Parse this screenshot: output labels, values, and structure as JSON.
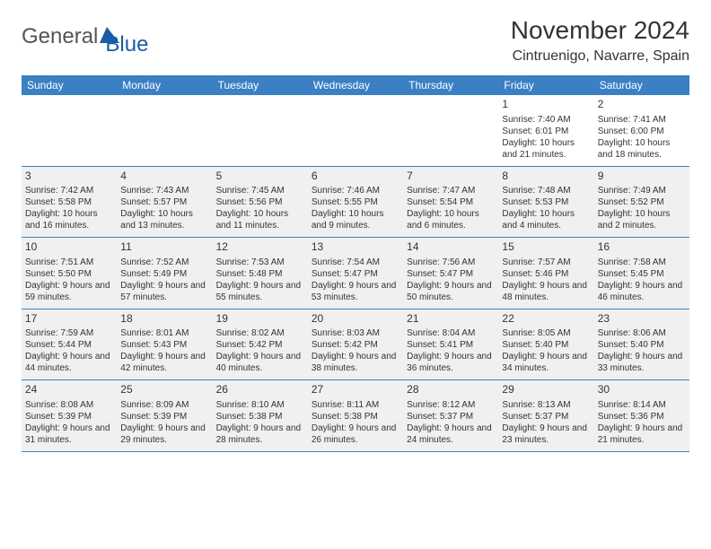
{
  "logo": {
    "first": "General",
    "second": "Blue"
  },
  "header": {
    "month_title": "November 2024",
    "location": "Cintruenigo, Navarre, Spain"
  },
  "colors": {
    "header_bg": "#3b7fc4",
    "header_text": "#ffffff",
    "border": "#3b7fc4",
    "shaded_bg": "#f0f0f0",
    "logo_first": "#555555",
    "logo_second": "#1a5ca8"
  },
  "day_names": [
    "Sunday",
    "Monday",
    "Tuesday",
    "Wednesday",
    "Thursday",
    "Friday",
    "Saturday"
  ],
  "weeks": [
    [
      {
        "empty": true
      },
      {
        "empty": true
      },
      {
        "empty": true
      },
      {
        "empty": true
      },
      {
        "empty": true
      },
      {
        "num": "1",
        "sunrise": "Sunrise: 7:40 AM",
        "sunset": "Sunset: 6:01 PM",
        "daylight": "Daylight: 10 hours and 21 minutes."
      },
      {
        "num": "2",
        "sunrise": "Sunrise: 7:41 AM",
        "sunset": "Sunset: 6:00 PM",
        "daylight": "Daylight: 10 hours and 18 minutes."
      }
    ],
    [
      {
        "num": "3",
        "shaded": true,
        "sunrise": "Sunrise: 7:42 AM",
        "sunset": "Sunset: 5:58 PM",
        "daylight": "Daylight: 10 hours and 16 minutes."
      },
      {
        "num": "4",
        "shaded": true,
        "sunrise": "Sunrise: 7:43 AM",
        "sunset": "Sunset: 5:57 PM",
        "daylight": "Daylight: 10 hours and 13 minutes."
      },
      {
        "num": "5",
        "shaded": true,
        "sunrise": "Sunrise: 7:45 AM",
        "sunset": "Sunset: 5:56 PM",
        "daylight": "Daylight: 10 hours and 11 minutes."
      },
      {
        "num": "6",
        "shaded": true,
        "sunrise": "Sunrise: 7:46 AM",
        "sunset": "Sunset: 5:55 PM",
        "daylight": "Daylight: 10 hours and 9 minutes."
      },
      {
        "num": "7",
        "shaded": true,
        "sunrise": "Sunrise: 7:47 AM",
        "sunset": "Sunset: 5:54 PM",
        "daylight": "Daylight: 10 hours and 6 minutes."
      },
      {
        "num": "8",
        "shaded": true,
        "sunrise": "Sunrise: 7:48 AM",
        "sunset": "Sunset: 5:53 PM",
        "daylight": "Daylight: 10 hours and 4 minutes."
      },
      {
        "num": "9",
        "shaded": true,
        "sunrise": "Sunrise: 7:49 AM",
        "sunset": "Sunset: 5:52 PM",
        "daylight": "Daylight: 10 hours and 2 minutes."
      }
    ],
    [
      {
        "num": "10",
        "shaded": true,
        "sunrise": "Sunrise: 7:51 AM",
        "sunset": "Sunset: 5:50 PM",
        "daylight": "Daylight: 9 hours and 59 minutes."
      },
      {
        "num": "11",
        "shaded": true,
        "sunrise": "Sunrise: 7:52 AM",
        "sunset": "Sunset: 5:49 PM",
        "daylight": "Daylight: 9 hours and 57 minutes."
      },
      {
        "num": "12",
        "shaded": true,
        "sunrise": "Sunrise: 7:53 AM",
        "sunset": "Sunset: 5:48 PM",
        "daylight": "Daylight: 9 hours and 55 minutes."
      },
      {
        "num": "13",
        "shaded": true,
        "sunrise": "Sunrise: 7:54 AM",
        "sunset": "Sunset: 5:47 PM",
        "daylight": "Daylight: 9 hours and 53 minutes."
      },
      {
        "num": "14",
        "shaded": true,
        "sunrise": "Sunrise: 7:56 AM",
        "sunset": "Sunset: 5:47 PM",
        "daylight": "Daylight: 9 hours and 50 minutes."
      },
      {
        "num": "15",
        "shaded": true,
        "sunrise": "Sunrise: 7:57 AM",
        "sunset": "Sunset: 5:46 PM",
        "daylight": "Daylight: 9 hours and 48 minutes."
      },
      {
        "num": "16",
        "shaded": true,
        "sunrise": "Sunrise: 7:58 AM",
        "sunset": "Sunset: 5:45 PM",
        "daylight": "Daylight: 9 hours and 46 minutes."
      }
    ],
    [
      {
        "num": "17",
        "shaded": true,
        "sunrise": "Sunrise: 7:59 AM",
        "sunset": "Sunset: 5:44 PM",
        "daylight": "Daylight: 9 hours and 44 minutes."
      },
      {
        "num": "18",
        "shaded": true,
        "sunrise": "Sunrise: 8:01 AM",
        "sunset": "Sunset: 5:43 PM",
        "daylight": "Daylight: 9 hours and 42 minutes."
      },
      {
        "num": "19",
        "shaded": true,
        "sunrise": "Sunrise: 8:02 AM",
        "sunset": "Sunset: 5:42 PM",
        "daylight": "Daylight: 9 hours and 40 minutes."
      },
      {
        "num": "20",
        "shaded": true,
        "sunrise": "Sunrise: 8:03 AM",
        "sunset": "Sunset: 5:42 PM",
        "daylight": "Daylight: 9 hours and 38 minutes."
      },
      {
        "num": "21",
        "shaded": true,
        "sunrise": "Sunrise: 8:04 AM",
        "sunset": "Sunset: 5:41 PM",
        "daylight": "Daylight: 9 hours and 36 minutes."
      },
      {
        "num": "22",
        "shaded": true,
        "sunrise": "Sunrise: 8:05 AM",
        "sunset": "Sunset: 5:40 PM",
        "daylight": "Daylight: 9 hours and 34 minutes."
      },
      {
        "num": "23",
        "shaded": true,
        "sunrise": "Sunrise: 8:06 AM",
        "sunset": "Sunset: 5:40 PM",
        "daylight": "Daylight: 9 hours and 33 minutes."
      }
    ],
    [
      {
        "num": "24",
        "shaded": true,
        "sunrise": "Sunrise: 8:08 AM",
        "sunset": "Sunset: 5:39 PM",
        "daylight": "Daylight: 9 hours and 31 minutes."
      },
      {
        "num": "25",
        "shaded": true,
        "sunrise": "Sunrise: 8:09 AM",
        "sunset": "Sunset: 5:39 PM",
        "daylight": "Daylight: 9 hours and 29 minutes."
      },
      {
        "num": "26",
        "shaded": true,
        "sunrise": "Sunrise: 8:10 AM",
        "sunset": "Sunset: 5:38 PM",
        "daylight": "Daylight: 9 hours and 28 minutes."
      },
      {
        "num": "27",
        "shaded": true,
        "sunrise": "Sunrise: 8:11 AM",
        "sunset": "Sunset: 5:38 PM",
        "daylight": "Daylight: 9 hours and 26 minutes."
      },
      {
        "num": "28",
        "shaded": true,
        "sunrise": "Sunrise: 8:12 AM",
        "sunset": "Sunset: 5:37 PM",
        "daylight": "Daylight: 9 hours and 24 minutes."
      },
      {
        "num": "29",
        "shaded": true,
        "sunrise": "Sunrise: 8:13 AM",
        "sunset": "Sunset: 5:37 PM",
        "daylight": "Daylight: 9 hours and 23 minutes."
      },
      {
        "num": "30",
        "shaded": true,
        "sunrise": "Sunrise: 8:14 AM",
        "sunset": "Sunset: 5:36 PM",
        "daylight": "Daylight: 9 hours and 21 minutes."
      }
    ]
  ]
}
